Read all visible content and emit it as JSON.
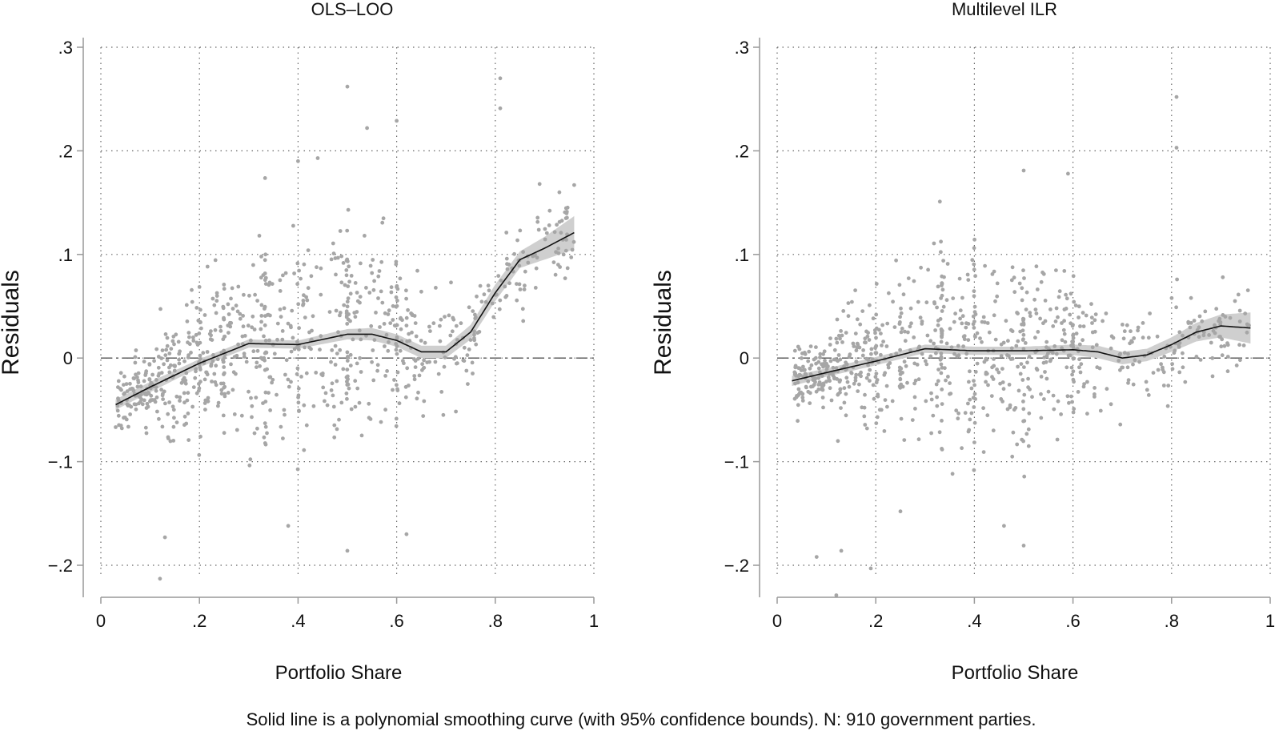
{
  "caption": "Solid line is a polynomial smoothing curve (with 95% confidence bounds). N: 910 government parties.",
  "colors": {
    "points": "#a6a6a6",
    "band": "#cfcfcf",
    "line": "#111111",
    "grid": "#666666",
    "axis": "#999999"
  },
  "chart_data": [
    {
      "type": "scatter",
      "title": "OLS–LOO",
      "xlabel": "Portfolio Share",
      "ylabel": "Residuals",
      "xlim": [
        0,
        1
      ],
      "ylim": [
        -0.24,
        0.3
      ],
      "xticks": [
        {
          "value": 0,
          "label": "0"
        },
        {
          "value": 0.2,
          "label": ".2"
        },
        {
          "value": 0.4,
          "label": ".4"
        },
        {
          "value": 0.6,
          "label": ".6"
        },
        {
          "value": 0.8,
          "label": ".8"
        },
        {
          "value": 1,
          "label": "1"
        }
      ],
      "yticks": [
        {
          "value": -0.2,
          "label": "−.2"
        },
        {
          "value": -0.1,
          "label": "−.1"
        },
        {
          "value": 0,
          "label": "0"
        },
        {
          "value": 0.1,
          "label": ".1"
        },
        {
          "value": 0.2,
          "label": ".2"
        },
        {
          "value": 0.3,
          "label": ".3"
        }
      ],
      "reference_line": 0,
      "smooth": {
        "x": [
          0.03,
          0.1,
          0.2,
          0.3,
          0.4,
          0.5,
          0.55,
          0.6,
          0.65,
          0.7,
          0.75,
          0.8,
          0.85,
          0.9,
          0.96
        ],
        "y": [
          -0.045,
          -0.028,
          -0.005,
          0.014,
          0.013,
          0.023,
          0.023,
          0.017,
          0.006,
          0.006,
          0.025,
          0.063,
          0.095,
          0.106,
          0.121
        ],
        "lower": [
          -0.05,
          -0.033,
          -0.009,
          0.01,
          0.009,
          0.018,
          0.017,
          0.011,
          0.0,
          0.0,
          0.018,
          0.055,
          0.087,
          0.095,
          0.105
        ],
        "upper": [
          -0.04,
          -0.023,
          -0.001,
          0.018,
          0.017,
          0.028,
          0.029,
          0.023,
          0.012,
          0.012,
          0.032,
          0.071,
          0.103,
          0.117,
          0.137
        ]
      },
      "seed": 11,
      "n_generated": 860,
      "outliers": [
        {
          "x": 0.5,
          "y": 0.262
        },
        {
          "x": 0.54,
          "y": 0.222
        },
        {
          "x": 0.6,
          "y": 0.229
        },
        {
          "x": 0.81,
          "y": 0.27
        },
        {
          "x": 0.81,
          "y": 0.241
        },
        {
          "x": 0.44,
          "y": 0.193
        },
        {
          "x": 0.4,
          "y": 0.19
        },
        {
          "x": 0.12,
          "y": -0.213
        },
        {
          "x": 0.5,
          "y": -0.186
        },
        {
          "x": 0.13,
          "y": -0.173
        },
        {
          "x": 0.38,
          "y": -0.162
        },
        {
          "x": 0.62,
          "y": -0.17
        },
        {
          "x": 0.96,
          "y": 0.167
        },
        {
          "x": 0.89,
          "y": 0.168
        },
        {
          "x": 0.93,
          "y": 0.16
        }
      ]
    },
    {
      "type": "scatter",
      "title": "Multilevel ILR",
      "xlabel": "Portfolio Share",
      "ylabel": "Residuals",
      "xlim": [
        0,
        1
      ],
      "ylim": [
        -0.24,
        0.3
      ],
      "xticks": [
        {
          "value": 0,
          "label": "0"
        },
        {
          "value": 0.2,
          "label": ".2"
        },
        {
          "value": 0.4,
          "label": ".4"
        },
        {
          "value": 0.6,
          "label": ".6"
        },
        {
          "value": 0.8,
          "label": ".8"
        },
        {
          "value": 1,
          "label": "1"
        }
      ],
      "yticks": [
        {
          "value": -0.2,
          "label": "−.2"
        },
        {
          "value": -0.1,
          "label": "−.1"
        },
        {
          "value": 0,
          "label": "0"
        },
        {
          "value": 0.1,
          "label": ".1"
        },
        {
          "value": 0.2,
          "label": ".2"
        },
        {
          "value": 0.3,
          "label": ".3"
        }
      ],
      "reference_line": 0,
      "smooth": {
        "x": [
          0.03,
          0.1,
          0.2,
          0.3,
          0.4,
          0.5,
          0.6,
          0.65,
          0.7,
          0.75,
          0.8,
          0.85,
          0.9,
          0.96
        ],
        "y": [
          -0.022,
          -0.014,
          -0.003,
          0.009,
          0.007,
          0.007,
          0.008,
          0.006,
          0.0,
          0.003,
          0.013,
          0.025,
          0.031,
          0.029
        ],
        "lower": [
          -0.027,
          -0.018,
          -0.007,
          0.005,
          0.003,
          0.003,
          0.003,
          0.0,
          -0.006,
          -0.003,
          0.006,
          0.016,
          0.02,
          0.014
        ],
        "upper": [
          -0.017,
          -0.01,
          0.001,
          0.013,
          0.011,
          0.011,
          0.013,
          0.012,
          0.006,
          0.009,
          0.02,
          0.034,
          0.042,
          0.044
        ]
      },
      "seed": 29,
      "n_generated": 860,
      "outliers": [
        {
          "x": 0.81,
          "y": 0.252
        },
        {
          "x": 0.81,
          "y": 0.203
        },
        {
          "x": 0.5,
          "y": 0.181
        },
        {
          "x": 0.59,
          "y": 0.178
        },
        {
          "x": 0.12,
          "y": -0.229
        },
        {
          "x": 0.08,
          "y": -0.192
        },
        {
          "x": 0.19,
          "y": -0.203
        },
        {
          "x": 0.5,
          "y": -0.181
        },
        {
          "x": 0.46,
          "y": -0.162
        },
        {
          "x": 0.13,
          "y": -0.186
        },
        {
          "x": 0.33,
          "y": 0.151
        },
        {
          "x": 0.25,
          "y": -0.148
        }
      ]
    }
  ]
}
